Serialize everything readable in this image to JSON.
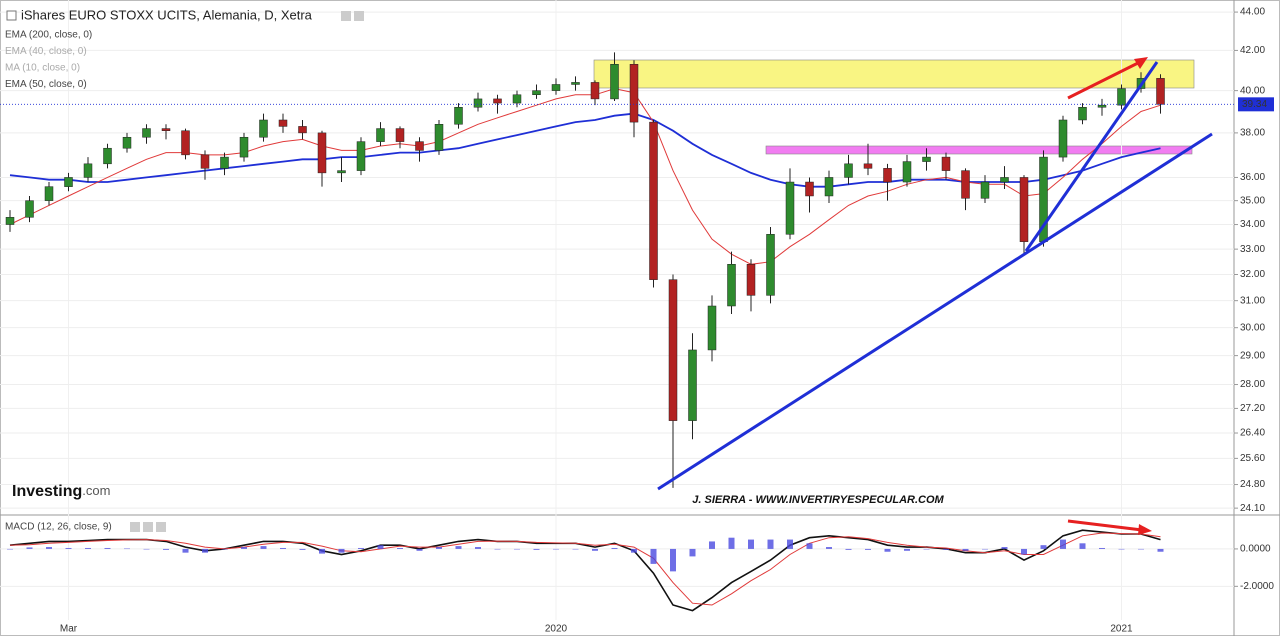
{
  "chart_data": [
    {
      "type": "candlestick",
      "title": "iShares EURO STOXX UCITS, Alemania, D, Xetra",
      "log": true,
      "grid": true,
      "up_color": "#2e8b2e",
      "down_color": "#b22222",
      "open": [
        34.0,
        34.3,
        35.0,
        35.6,
        36.0,
        36.6,
        37.3,
        37.8,
        38.2,
        38.1,
        37.0,
        36.4,
        36.9,
        37.8,
        38.6,
        38.3,
        38.0,
        36.2,
        36.3,
        37.6,
        38.2,
        37.6,
        37.2,
        38.4,
        39.2,
        39.6,
        39.4,
        39.8,
        40.0,
        40.3,
        40.4,
        39.6,
        41.3,
        38.5,
        31.8,
        26.8,
        29.2,
        30.8,
        32.4,
        31.2,
        33.6,
        35.8,
        35.2,
        36.0,
        36.6,
        36.4,
        35.8,
        36.7,
        36.9,
        36.3,
        35.1,
        35.8,
        36.0,
        33.3,
        36.9,
        38.6,
        39.2,
        39.3,
        40.1,
        40.6
      ],
      "high": [
        34.6,
        35.2,
        35.8,
        36.2,
        36.9,
        37.5,
        38.0,
        38.4,
        38.4,
        38.2,
        37.2,
        37.1,
        38.0,
        38.9,
        38.9,
        38.6,
        38.1,
        36.9,
        37.8,
        38.5,
        38.3,
        37.8,
        38.6,
        39.4,
        39.9,
        39.8,
        40.0,
        40.3,
        40.6,
        40.7,
        40.5,
        41.9,
        41.5,
        38.6,
        32.0,
        29.8,
        31.2,
        32.9,
        32.6,
        33.9,
        36.4,
        36.0,
        36.3,
        37.0,
        37.5,
        36.6,
        37.0,
        37.3,
        37.1,
        36.4,
        36.1,
        36.5,
        36.1,
        37.2,
        38.8,
        39.4,
        39.6,
        40.3,
        40.9,
        40.8
      ],
      "low": [
        33.7,
        34.1,
        34.8,
        35.4,
        35.8,
        36.4,
        37.1,
        37.5,
        37.7,
        36.8,
        35.9,
        36.1,
        36.7,
        37.6,
        38.0,
        37.7,
        35.6,
        35.8,
        36.1,
        37.4,
        37.3,
        36.7,
        37.0,
        38.2,
        39.0,
        38.9,
        39.2,
        39.6,
        39.8,
        40.0,
        39.3,
        39.5,
        37.8,
        31.5,
        24.7,
        26.2,
        28.8,
        30.5,
        30.6,
        30.9,
        33.4,
        34.5,
        34.9,
        35.7,
        36.1,
        35.0,
        35.6,
        36.3,
        35.9,
        34.6,
        34.9,
        35.5,
        32.8,
        33.1,
        36.7,
        38.4,
        38.8,
        39.1,
        39.9,
        38.9
      ],
      "close": [
        34.3,
        35.0,
        35.6,
        36.0,
        36.6,
        37.3,
        37.8,
        38.2,
        38.1,
        37.0,
        36.4,
        36.9,
        37.8,
        38.6,
        38.3,
        38.0,
        36.2,
        36.3,
        37.6,
        38.2,
        37.6,
        37.2,
        38.4,
        39.2,
        39.6,
        39.4,
        39.8,
        40.0,
        40.3,
        40.4,
        39.6,
        41.3,
        38.5,
        31.8,
        26.8,
        29.2,
        30.8,
        32.4,
        31.2,
        33.6,
        35.8,
        35.2,
        36.0,
        36.6,
        36.4,
        35.8,
        36.7,
        36.9,
        36.3,
        35.1,
        35.8,
        36.0,
        33.3,
        36.9,
        38.6,
        39.2,
        39.3,
        40.1,
        40.6,
        39.34
      ],
      "series": [
        {
          "name": "EMA (200, close, 0)",
          "color": "#1f2fd6",
          "visible": true,
          "values": [
            36.1,
            36.0,
            35.9,
            35.9,
            35.8,
            35.8,
            35.9,
            36.0,
            36.1,
            36.2,
            36.3,
            36.4,
            36.5,
            36.6,
            36.7,
            36.8,
            36.8,
            36.9,
            36.9,
            37.0,
            37.1,
            37.1,
            37.2,
            37.3,
            37.5,
            37.7,
            37.9,
            38.1,
            38.3,
            38.5,
            38.6,
            38.8,
            38.9,
            38.6,
            38.1,
            37.5,
            37.0,
            36.6,
            36.2,
            35.9,
            35.7,
            35.6,
            35.6,
            35.7,
            35.8,
            35.8,
            35.9,
            35.9,
            35.9,
            35.8,
            35.8,
            35.8,
            35.8,
            35.9,
            36.1,
            36.3,
            36.6,
            36.9,
            37.1,
            37.3
          ]
        },
        {
          "name": "EMA (40, close, 0)",
          "visible": false
        },
        {
          "name": "MA (10, close, 0)",
          "visible": false
        },
        {
          "name": "EMA (50, close, 0)",
          "color": "#e03a3a",
          "visible": true,
          "values": [
            34.0,
            34.4,
            34.8,
            35.2,
            35.6,
            36.0,
            36.4,
            36.8,
            37.1,
            37.1,
            37.0,
            37.0,
            37.1,
            37.4,
            37.6,
            37.7,
            37.4,
            37.2,
            37.2,
            37.4,
            37.5,
            37.4,
            37.6,
            38.0,
            38.4,
            38.7,
            39.0,
            39.3,
            39.6,
            39.8,
            39.8,
            40.1,
            39.9,
            38.5,
            36.3,
            34.6,
            33.4,
            32.8,
            32.4,
            32.5,
            33.1,
            33.6,
            34.2,
            34.8,
            35.2,
            35.4,
            35.7,
            35.9,
            36.0,
            35.8,
            35.7,
            35.7,
            35.2,
            35.3,
            36.0,
            36.8,
            37.5,
            38.3,
            39.0,
            39.3
          ]
        }
      ],
      "ylim": [
        23.9,
        44.65
      ],
      "yticks": [
        {
          "value": 44,
          "label": "44.00"
        },
        {
          "value": 42,
          "label": "42.00"
        },
        {
          "value": 40,
          "label": "40.00"
        },
        {
          "value": 38,
          "label": "38.00"
        },
        {
          "value": 36,
          "label": "36.00"
        },
        {
          "value": 35,
          "label": "35.00"
        },
        {
          "value": 34,
          "label": "34.00"
        },
        {
          "value": 33,
          "label": "33.00"
        },
        {
          "value": 32,
          "label": "32.00"
        },
        {
          "value": 31,
          "label": "31.00"
        },
        {
          "value": 30,
          "label": "30.00"
        },
        {
          "value": 29,
          "label": "29.00"
        },
        {
          "value": 28,
          "label": "28.00"
        },
        {
          "value": 27.2,
          "label": "27.20"
        },
        {
          "value": 26.4,
          "label": "26.40"
        },
        {
          "value": 25.6,
          "label": "25.60"
        },
        {
          "value": 24.8,
          "label": "24.80"
        },
        {
          "value": 24.1,
          "label": "24.10"
        }
      ],
      "annotations": [
        "J. SIERRA - WWW.INVERTIRYESPECULAR.COM"
      ],
      "logo": [
        "Investing",
        ".com"
      ]
    },
    {
      "type": "macd",
      "title": "MACD (12, 26, close, 9)",
      "grid": true,
      "categories": [
        null,
        null,
        null,
        "Mar",
        null,
        null,
        null,
        null,
        null,
        null,
        null,
        null,
        null,
        null,
        null,
        null,
        null,
        null,
        null,
        null,
        null,
        null,
        null,
        null,
        null,
        null,
        null,
        null,
        "2020",
        null,
        null,
        null,
        null,
        null,
        null,
        null,
        null,
        null,
        null,
        null,
        null,
        null,
        null,
        null,
        null,
        null,
        null,
        null,
        null,
        null,
        null,
        null,
        null,
        null,
        null,
        null,
        null,
        "2021",
        null,
        null
      ],
      "series": [
        {
          "name": "MACD",
          "color": "#111111",
          "values": [
            0.2,
            0.3,
            0.4,
            0.4,
            0.45,
            0.5,
            0.5,
            0.5,
            0.4,
            0.1,
            -0.1,
            0.0,
            0.2,
            0.4,
            0.4,
            0.3,
            -0.1,
            -0.3,
            -0.1,
            0.2,
            0.2,
            0.0,
            0.2,
            0.4,
            0.5,
            0.4,
            0.4,
            0.3,
            0.3,
            0.3,
            0.1,
            0.3,
            -0.1,
            -1.3,
            -3.0,
            -3.3,
            -2.6,
            -1.8,
            -1.2,
            -0.6,
            0.2,
            0.6,
            0.7,
            0.6,
            0.5,
            0.2,
            0.1,
            0.1,
            0.0,
            -0.2,
            -0.2,
            0.0,
            -0.6,
            -0.1,
            0.7,
            1.0,
            0.9,
            0.8,
            0.8,
            0.5
          ]
        },
        {
          "name": "Signal",
          "color": "#e03a3a",
          "values": [
            0.2,
            0.22,
            0.3,
            0.35,
            0.4,
            0.45,
            0.48,
            0.5,
            0.45,
            0.3,
            0.1,
            0.0,
            0.1,
            0.25,
            0.35,
            0.35,
            0.15,
            -0.1,
            -0.15,
            0.0,
            0.15,
            0.1,
            0.1,
            0.25,
            0.4,
            0.42,
            0.4,
            0.35,
            0.32,
            0.3,
            0.2,
            0.25,
            0.1,
            -0.5,
            -1.8,
            -2.9,
            -3.0,
            -2.4,
            -1.7,
            -1.1,
            -0.3,
            0.3,
            0.6,
            0.65,
            0.55,
            0.35,
            0.2,
            0.1,
            0.05,
            -0.1,
            -0.2,
            -0.1,
            -0.3,
            -0.3,
            0.2,
            0.7,
            0.85,
            0.82,
            0.8,
            0.65
          ]
        },
        {
          "name": "Histogram",
          "color": "#4a4ae0",
          "values": [
            0,
            0.08,
            0.1,
            0.05,
            0.05,
            0.05,
            0.02,
            0,
            -0.05,
            -0.2,
            -0.2,
            0,
            0.1,
            0.15,
            0.05,
            -0.05,
            -0.25,
            -0.2,
            0.05,
            0.2,
            0.05,
            -0.1,
            0.1,
            0.15,
            0.1,
            -0.02,
            0,
            -0.05,
            -0.02,
            0,
            -0.1,
            0.05,
            -0.2,
            -0.8,
            -1.2,
            -0.4,
            0.4,
            0.6,
            0.5,
            0.5,
            0.5,
            0.3,
            0.1,
            -0.05,
            -0.05,
            -0.15,
            -0.1,
            0,
            -0.05,
            -0.1,
            0,
            0.1,
            -0.3,
            0.2,
            0.5,
            0.3,
            0.05,
            -0.02,
            0,
            -0.15
          ]
        }
      ],
      "ylim": [
        -3.8,
        1.76
      ],
      "yticks": [
        {
          "value": 0,
          "label": "0.0000"
        },
        {
          "value": -2,
          "label": "-2.0000"
        }
      ]
    }
  ]
}
